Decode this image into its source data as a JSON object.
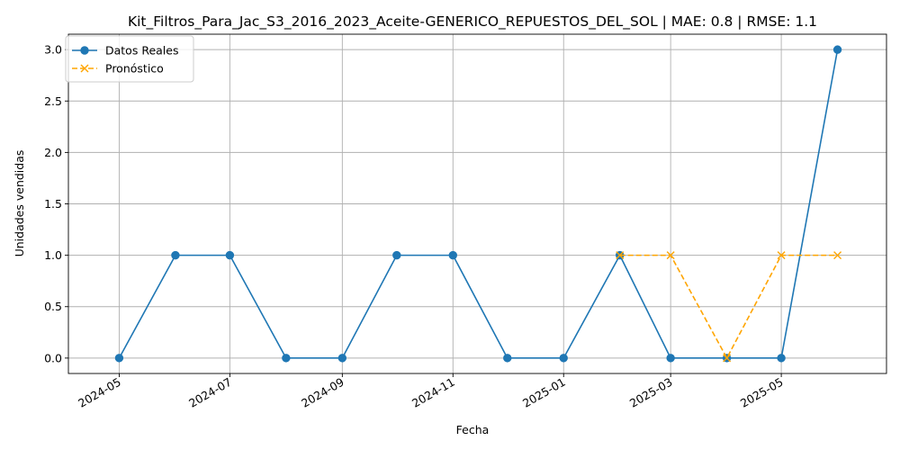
{
  "chart_data": {
    "type": "line",
    "title": "Kit_Filtros_Para_Jac_S3_2016_2023_Aceite-GENERICO_REPUESTOS_DEL_SOL | MAE: 0.8 | RMSE: 1.1",
    "xlabel": "Fecha",
    "ylabel": "Unidades vendidas",
    "x_tick_labels": [
      "2024-05",
      "2024-07",
      "2024-09",
      "2024-11",
      "2025-01",
      "2025-03",
      "2025-05"
    ],
    "y_tick_labels": [
      "0.0",
      "0.5",
      "1.0",
      "1.5",
      "2.0",
      "2.5",
      "3.0"
    ],
    "ylim": [
      -0.15,
      3.15
    ],
    "xlim": [
      "2024-04-03",
      "2025-06-28"
    ],
    "grid": true,
    "legend_position": "upper-left",
    "series": [
      {
        "name": "Datos Reales",
        "color": "#1f77b4",
        "line_style": "solid",
        "marker": "circle",
        "x": [
          "2024-05-01",
          "2024-06-01",
          "2024-07-01",
          "2024-08-01",
          "2024-09-01",
          "2024-10-01",
          "2024-11-01",
          "2024-12-01",
          "2025-01-01",
          "2025-02-01",
          "2025-03-01",
          "2025-04-01",
          "2025-05-01",
          "2025-06-01"
        ],
        "values": [
          0,
          1,
          1,
          0,
          0,
          1,
          1,
          0,
          0,
          1,
          0,
          0,
          0,
          3
        ]
      },
      {
        "name": "Pronóstico",
        "color": "#ffa500",
        "line_style": "dashed",
        "marker": "x",
        "x": [
          "2025-02-01",
          "2025-03-01",
          "2025-04-01",
          "2025-05-01",
          "2025-06-01"
        ],
        "values": [
          1,
          1,
          0,
          1,
          1
        ]
      }
    ]
  }
}
